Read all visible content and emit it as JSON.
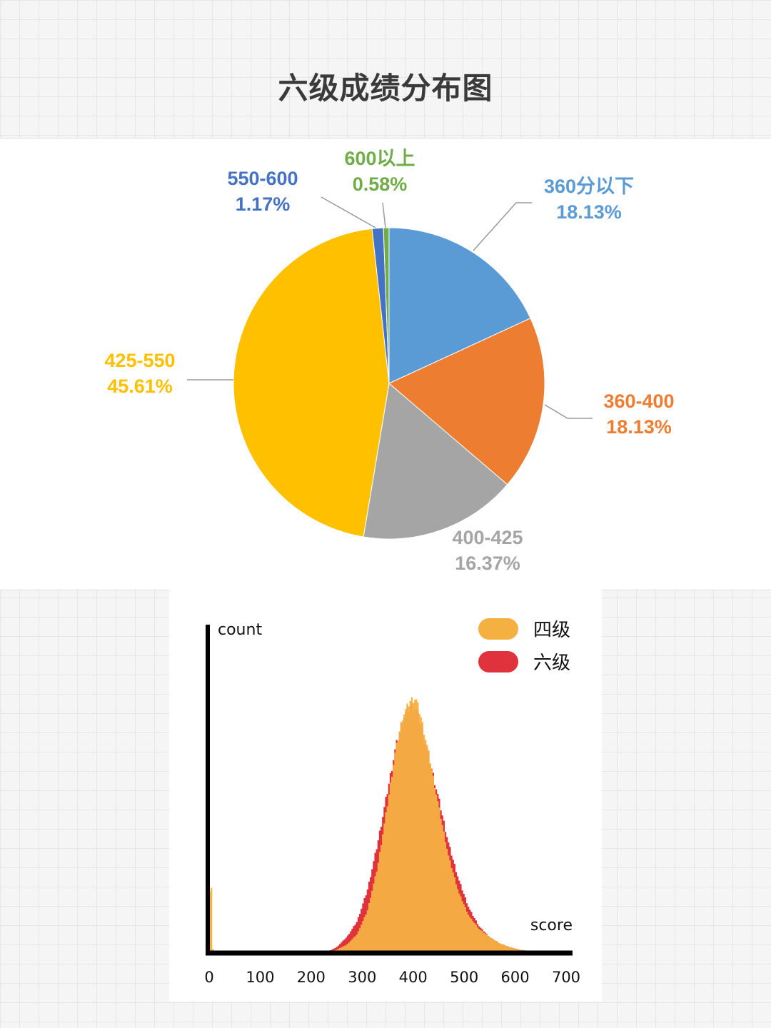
{
  "title": "六级成绩分布图",
  "colors": {
    "s360below": "#5b9bd5",
    "s360_400": "#ed7d31",
    "s400_425": "#a5a5a5",
    "s425_550": "#ffc000",
    "s550_600": "#4472c4",
    "s600up": "#70ad47",
    "cet4": "#f5b042",
    "cet6": "#e0323c"
  },
  "chart_data": [
    {
      "type": "pie",
      "title": "六级成绩分布图",
      "slices": [
        {
          "label": "360分以下",
          "percent_text": "18.13%",
          "value": 18.13,
          "color": "#5b9bd5"
        },
        {
          "label": "360-400",
          "percent_text": "18.13%",
          "value": 18.13,
          "color": "#ed7d31"
        },
        {
          "label": "400-425",
          "percent_text": "16.37%",
          "value": 16.37,
          "color": "#a5a5a5"
        },
        {
          "label": "425-550",
          "percent_text": "45.61%",
          "value": 45.61,
          "color": "#ffc000"
        },
        {
          "label": "550-600",
          "percent_text": "1.17%",
          "value": 1.17,
          "color": "#4472c4"
        },
        {
          "label": "600以上",
          "percent_text": "0.58%",
          "value": 0.58,
          "color": "#70ad47"
        }
      ]
    },
    {
      "type": "area",
      "xlabel": "score",
      "ylabel": "count",
      "xlim": [
        0,
        700
      ],
      "xticks": [
        "0",
        "100",
        "200",
        "300",
        "400",
        "500",
        "600",
        "700"
      ],
      "legend": "top-right",
      "series": [
        {
          "name": "四级",
          "color": "#f5b042",
          "x": [
            0,
            2,
            4,
            6,
            8,
            10,
            235,
            250,
            270,
            290,
            310,
            330,
            350,
            365,
            380,
            395,
            405,
            415,
            430,
            450,
            470,
            490,
            510,
            530,
            550,
            570,
            590,
            610,
            630,
            650,
            700
          ],
          "y": [
            0,
            0.32,
            0.32,
            0.05,
            0,
            0,
            0,
            0.01,
            0.03,
            0.07,
            0.16,
            0.33,
            0.58,
            0.78,
            0.92,
            0.98,
            0.99,
            0.92,
            0.78,
            0.57,
            0.37,
            0.23,
            0.14,
            0.09,
            0.06,
            0.035,
            0.02,
            0.01,
            0.004,
            0,
            0
          ]
        },
        {
          "name": "六级",
          "color": "#e0323c",
          "x": [
            230,
            250,
            270,
            290,
            310,
            330,
            350,
            365,
            380,
            395,
            405,
            415,
            430,
            450,
            470,
            490,
            510,
            530,
            550,
            570,
            590,
            610,
            630,
            650,
            700
          ],
          "y": [
            0,
            0.02,
            0.06,
            0.12,
            0.24,
            0.42,
            0.63,
            0.79,
            0.91,
            0.96,
            0.95,
            0.89,
            0.77,
            0.6,
            0.42,
            0.28,
            0.17,
            0.1,
            0.06,
            0.035,
            0.02,
            0.01,
            0.004,
            0,
            0
          ]
        }
      ]
    }
  ]
}
